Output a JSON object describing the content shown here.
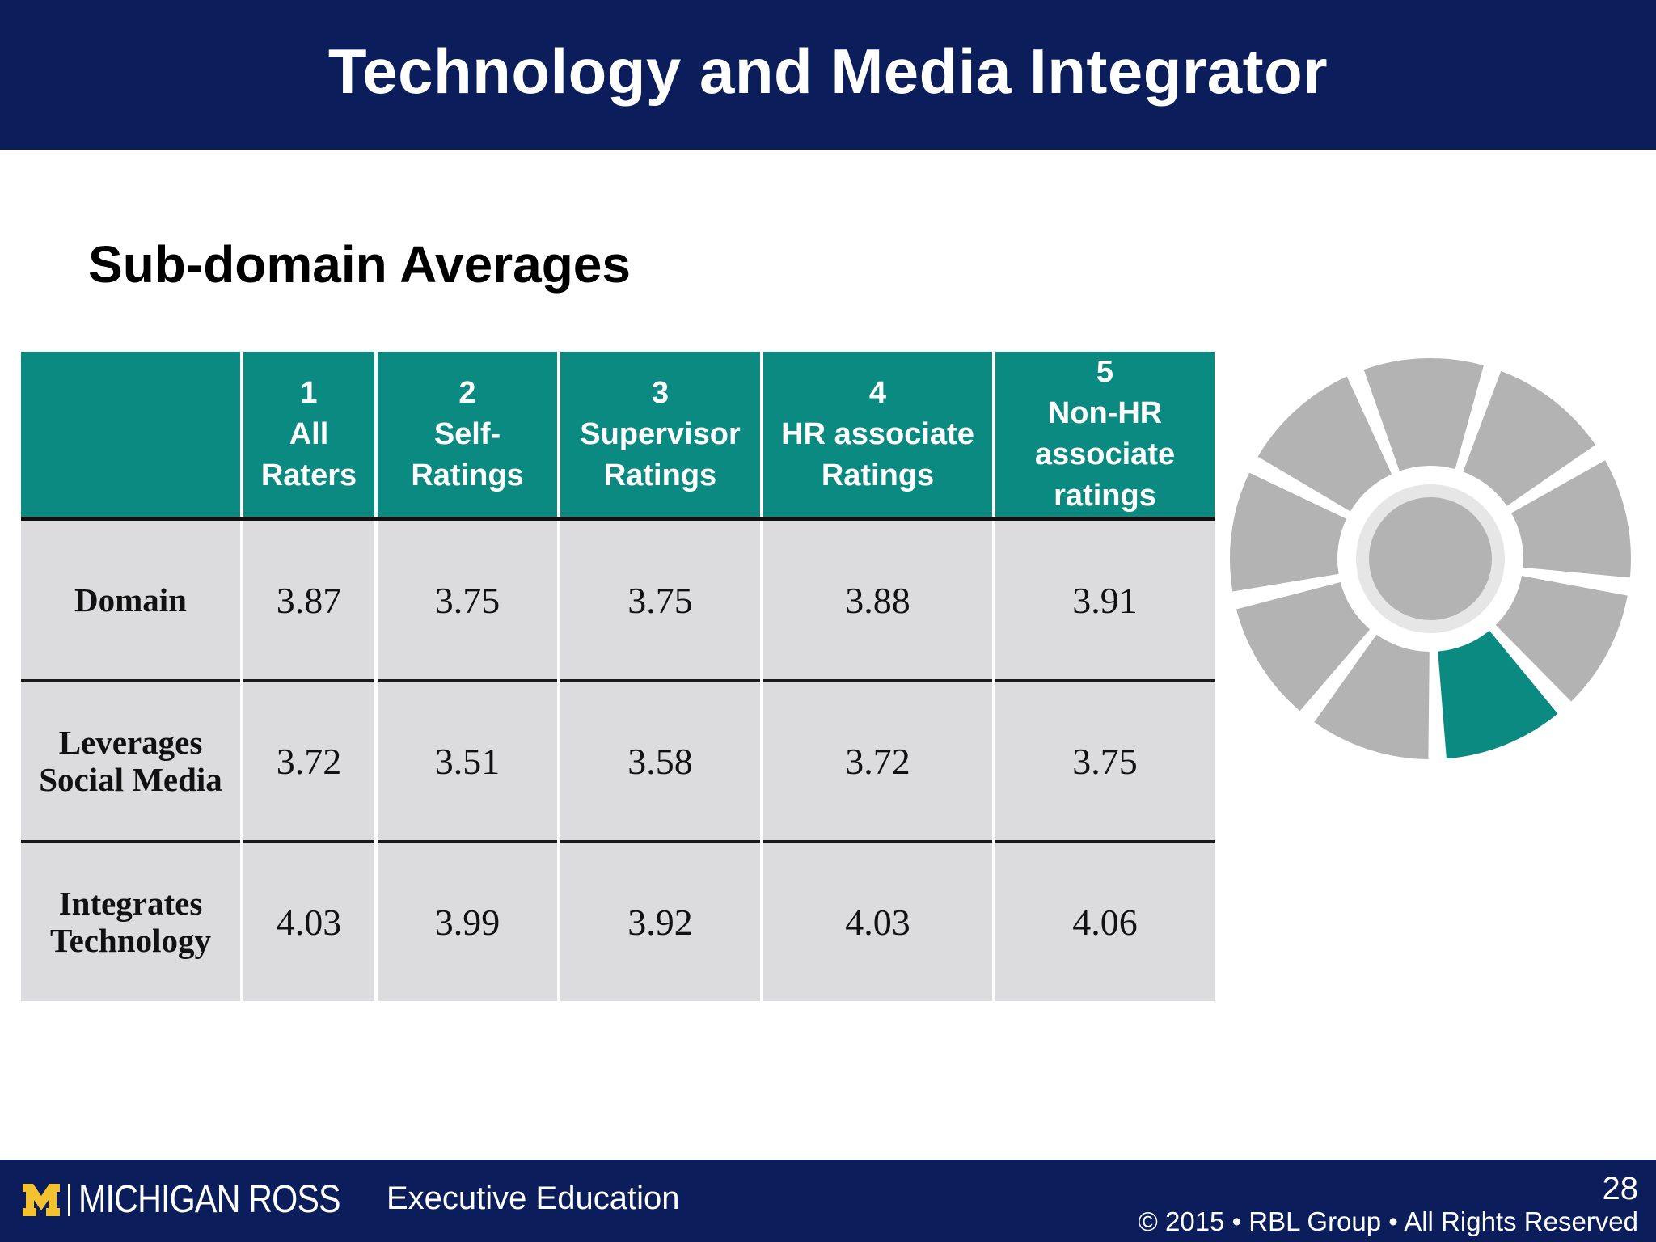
{
  "slide": {
    "title": "Technology and Media Integrator",
    "subtitle": "Sub-domain Averages",
    "page_number": "28"
  },
  "table": {
    "headers": [
      {
        "number": "1",
        "label_lines": [
          "All",
          "Raters"
        ]
      },
      {
        "number": "2",
        "label_lines": [
          "Self-",
          "Ratings"
        ]
      },
      {
        "number": "3",
        "label_lines": [
          "Supervisor",
          "Ratings"
        ]
      },
      {
        "number": "4",
        "label_lines": [
          "HR associate",
          "Ratings"
        ]
      },
      {
        "number": "5",
        "label_lines": [
          "Non-HR",
          "associate",
          "ratings"
        ]
      }
    ],
    "rows": [
      {
        "label_lines": [
          "Domain"
        ],
        "values": [
          "3.87",
          "3.75",
          "3.75",
          "3.88",
          "3.91"
        ]
      },
      {
        "label_lines": [
          "Leverages",
          "Social Media"
        ],
        "values": [
          "3.72",
          "3.51",
          "3.58",
          "3.72",
          "3.75"
        ]
      },
      {
        "label_lines": [
          "Integrates",
          "Technology"
        ],
        "values": [
          "4.03",
          "3.99",
          "3.92",
          "4.03",
          "4.06"
        ]
      }
    ]
  },
  "wheel": {
    "segment_count": 9,
    "highlighted_segment": 4,
    "colors": {
      "segment": "#b3b3b3",
      "highlight": "#0b8a81",
      "center": "#b3b3b3",
      "ring": "#e6e6e6"
    }
  },
  "footer": {
    "brand": "MICHIGAN ROSS",
    "program": "Executive Education",
    "copyright": "© 2015 • RBL Group • All Rights Reserved",
    "colors": {
      "background": "#0b1d5b",
      "logo_m": "#f2c230"
    }
  }
}
